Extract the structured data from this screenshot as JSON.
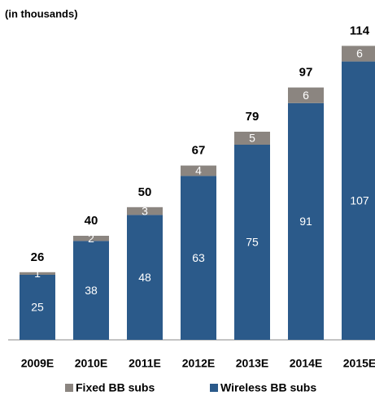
{
  "chart_data": {
    "type": "stacked-bar",
    "title": "(in thousands)",
    "categories": [
      "2009E",
      "2010E",
      "2011E",
      "2012E",
      "2013E",
      "2014E",
      "2015E"
    ],
    "series": [
      {
        "name": "Fixed BB subs",
        "color": "#8b8580",
        "values": [
          1,
          2,
          3,
          4,
          5,
          6,
          6
        ]
      },
      {
        "name": "Wireless BB subs",
        "color": "#2b5a8a",
        "values": [
          25,
          38,
          48,
          63,
          75,
          91,
          107
        ]
      }
    ],
    "totals": [
      26,
      40,
      50,
      67,
      79,
      97,
      114
    ]
  }
}
